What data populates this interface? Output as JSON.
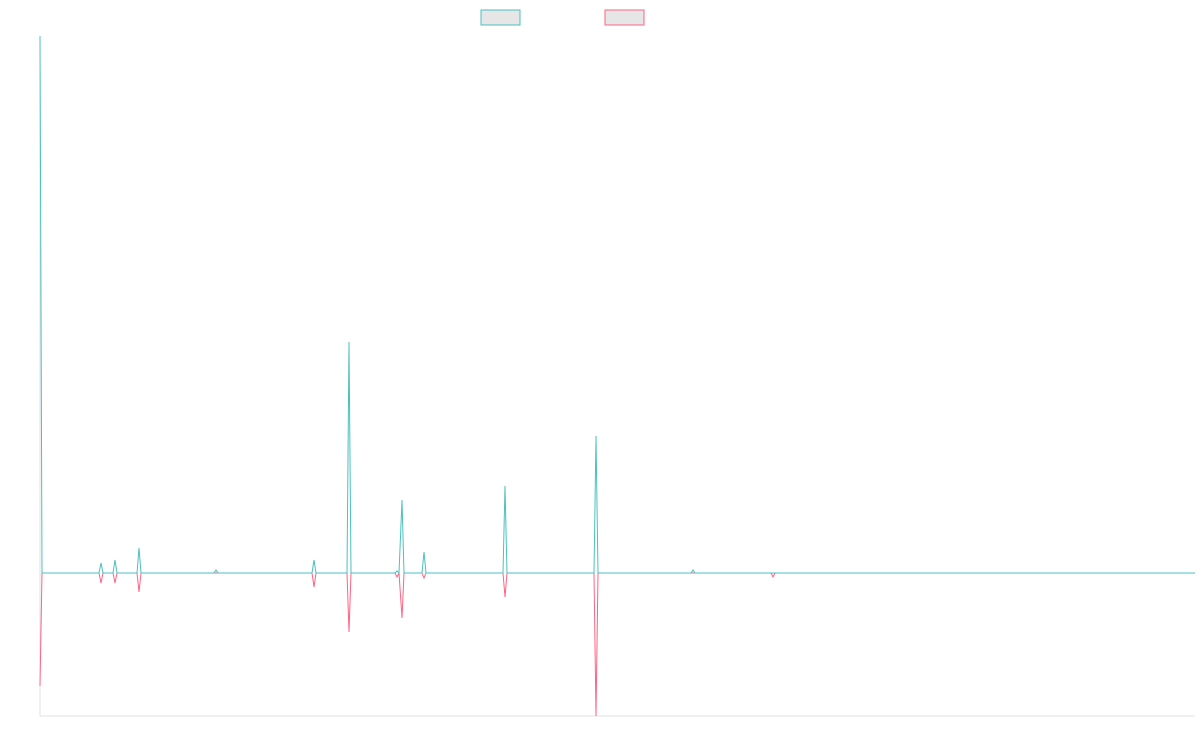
{
  "chart_data": {
    "type": "line",
    "x": [
      0,
      2,
      59,
      61,
      63,
      73,
      75,
      77,
      97,
      99,
      101,
      174,
      176,
      178,
      272,
      274,
      276,
      307,
      309,
      311,
      355,
      357,
      359,
      362,
      364,
      382,
      384,
      386,
      463,
      465,
      467,
      554,
      556,
      558,
      651,
      653,
      655,
      731,
      733,
      735,
      1155
    ],
    "xlim": [
      0,
      1155
    ],
    "ylim": [
      -143,
      537
    ],
    "series": [
      {
        "color": "#ff6384",
        "values": [
          -113,
          0,
          0,
          -10,
          0,
          0,
          -10,
          0,
          0,
          -19,
          0,
          0,
          0,
          0,
          0,
          -14,
          0,
          0,
          -59,
          0,
          0,
          -4,
          0,
          -45,
          0,
          0,
          -5,
          0,
          0,
          -24,
          0,
          0,
          -143,
          0,
          0,
          0,
          0,
          0,
          -4,
          0,
          0
        ]
      },
      {
        "color": "#4bc0c0",
        "values": [
          537,
          0,
          0,
          10,
          0,
          0,
          13,
          0,
          0,
          25,
          0,
          0,
          3,
          0,
          0,
          13,
          0,
          0,
          231,
          0,
          0,
          2,
          0,
          73,
          0,
          0,
          21,
          0,
          0,
          87,
          0,
          0,
          137,
          0,
          0,
          3,
          0,
          0,
          0,
          0,
          0
        ]
      }
    ]
  }
}
